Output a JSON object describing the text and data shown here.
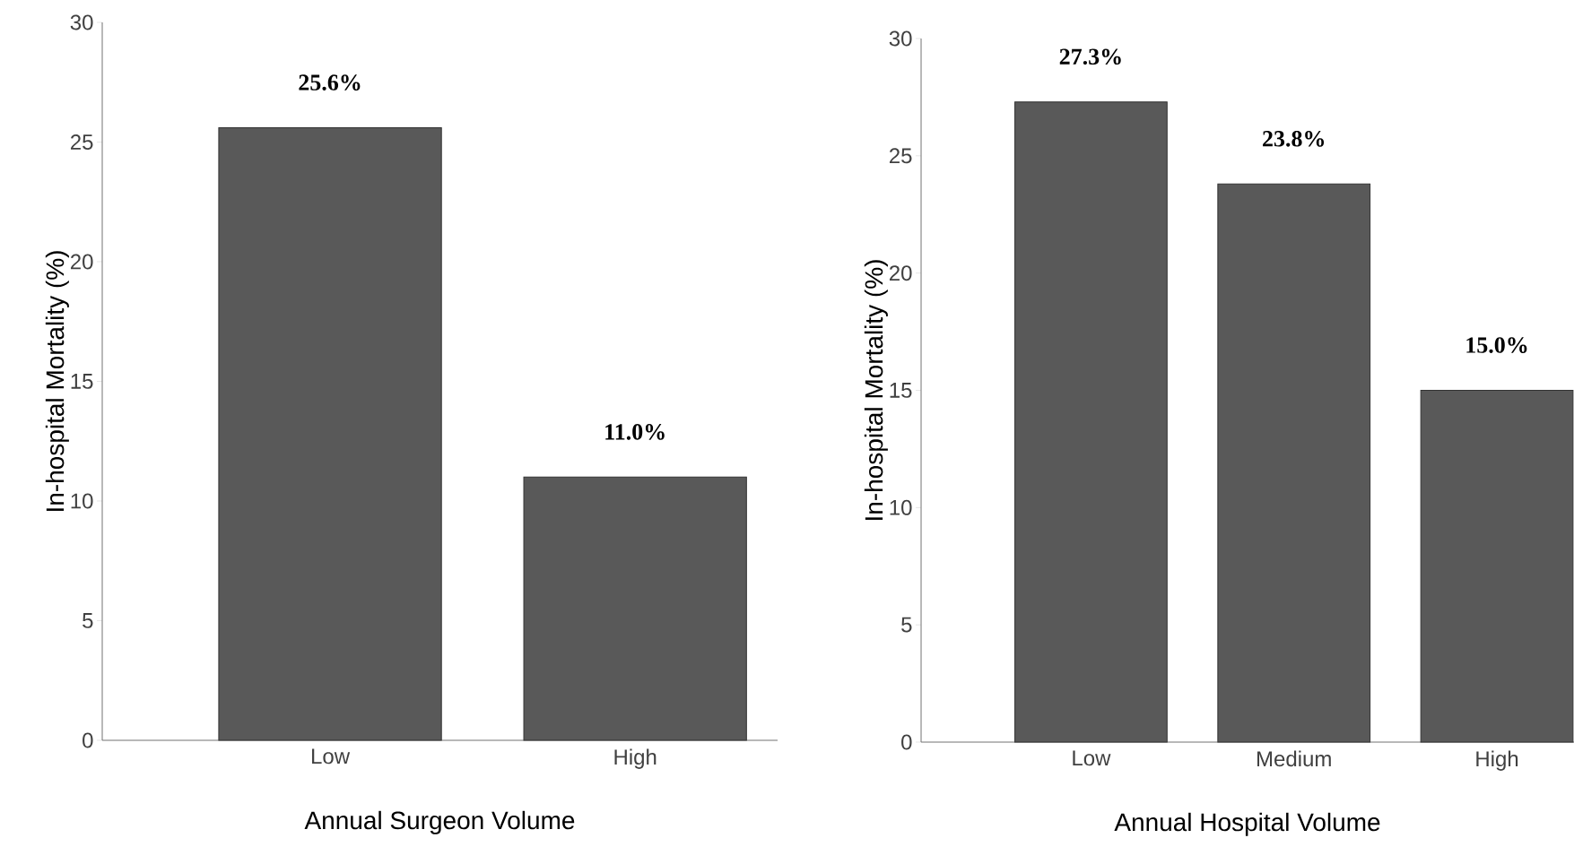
{
  "chart_data": [
    {
      "type": "bar",
      "categories": [
        "Low",
        "High"
      ],
      "values": [
        25.6,
        11.0
      ],
      "value_labels": [
        "25.6%",
        "11.0%"
      ],
      "color": "#595959",
      "xlabel": "Annual Surgeon Volume",
      "ylabel": "In-hospital Mortality (%)",
      "ylim": [
        0,
        30
      ],
      "yticks": [
        0,
        5,
        10,
        15,
        20,
        25,
        30
      ]
    },
    {
      "type": "bar",
      "categories": [
        "Low",
        "Medium",
        "High"
      ],
      "values": [
        27.3,
        23.8,
        15.0
      ],
      "value_labels": [
        "27.3%",
        "23.8%",
        "15.0%"
      ],
      "color": "#595959",
      "xlabel": "Annual Hospital Volume",
      "ylabel": "In-hospital Mortality (%)",
      "ylim": [
        0,
        30
      ],
      "yticks": [
        0,
        5,
        10,
        15,
        20,
        25,
        30
      ]
    }
  ]
}
